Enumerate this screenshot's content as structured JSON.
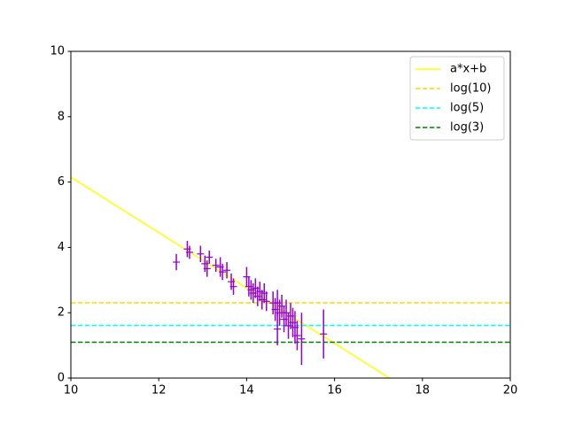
{
  "chart_data": {
    "type": "errorbar",
    "xlim": [
      10,
      20
    ],
    "ylim": [
      0,
      10
    ],
    "xticks": [
      10,
      12,
      14,
      16,
      18,
      20
    ],
    "yticks": [
      0,
      2,
      4,
      6,
      8,
      10
    ],
    "grid": false,
    "legend": "upper right",
    "series": [
      {
        "name": "a*x+b",
        "color": "#ffff00",
        "dashed": false,
        "x": [
          10,
          17.25
        ],
        "values": [
          6.15,
          0
        ]
      },
      {
        "name": "log(10)",
        "color": "#ffd700",
        "dashed": true,
        "x": [
          10,
          20
        ],
        "values": [
          2.303,
          2.303
        ]
      },
      {
        "name": "log(5)",
        "color": "#00ffff",
        "dashed": true,
        "x": [
          10,
          20
        ],
        "values": [
          1.609,
          1.609
        ]
      },
      {
        "name": "log(3)",
        "color": "#008000",
        "dashed": true,
        "x": [
          10,
          20
        ],
        "values": [
          1.099,
          1.099
        ]
      }
    ],
    "points": {
      "color": "#9400d3",
      "x": [
        12.4,
        12.65,
        12.7,
        12.95,
        13.05,
        13.1,
        13.15,
        13.3,
        13.4,
        13.45,
        13.55,
        13.65,
        13.7,
        14.0,
        14.05,
        14.1,
        14.15,
        14.2,
        14.25,
        14.3,
        14.35,
        14.4,
        14.45,
        14.6,
        14.65,
        14.7,
        14.7,
        14.75,
        14.8,
        14.85,
        14.9,
        14.95,
        15.0,
        15.05,
        15.1,
        15.15,
        15.25,
        15.75
      ],
      "values": [
        3.55,
        3.95,
        3.85,
        3.8,
        3.5,
        3.35,
        3.7,
        3.45,
        3.4,
        3.25,
        3.3,
        2.95,
        2.8,
        3.1,
        2.8,
        2.7,
        2.6,
        2.75,
        2.5,
        2.65,
        2.4,
        2.6,
        2.35,
        2.3,
        2.1,
        2.3,
        1.5,
        2.0,
        2.2,
        1.8,
        2.0,
        1.6,
        1.9,
        1.7,
        1.55,
        1.3,
        1.2,
        1.35
      ],
      "errors": [
        0.25,
        0.25,
        0.2,
        0.25,
        0.25,
        0.25,
        0.2,
        0.2,
        0.3,
        0.25,
        0.25,
        0.25,
        0.25,
        0.3,
        0.3,
        0.3,
        0.3,
        0.3,
        0.3,
        0.3,
        0.3,
        0.3,
        0.3,
        0.35,
        0.35,
        0.4,
        0.5,
        0.4,
        0.35,
        0.4,
        0.4,
        0.4,
        0.4,
        0.45,
        0.5,
        0.45,
        0.8,
        0.75
      ]
    }
  }
}
